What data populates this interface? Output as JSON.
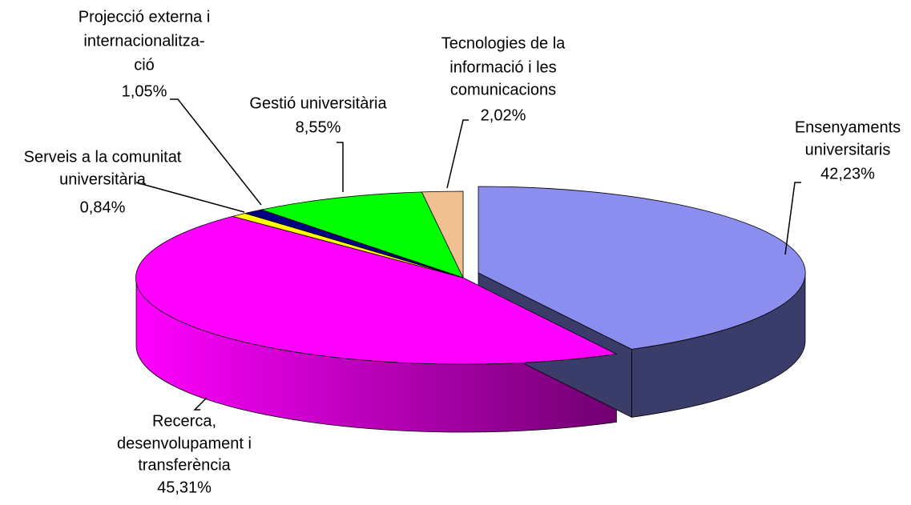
{
  "chart_data": {
    "type": "pie",
    "three_d": true,
    "categories": [
      [
        "Ensenyaments",
        "universitaris"
      ],
      [
        "Recerca,",
        "desenvolupament i",
        "transferència"
      ],
      [
        "Serveis a la comunitat",
        "universitària"
      ],
      [
        "Projecció externa i",
        "internacionalitza-",
        "ció"
      ],
      [
        "Gestió universitària"
      ],
      [
        "Tecnologies de la",
        "informació i les",
        "comunicacions"
      ]
    ],
    "values": [
      42.23,
      45.31,
      0.84,
      1.05,
      8.55,
      2.02
    ],
    "value_labels": [
      "42,23%",
      "45,31%",
      "0,84%",
      "1,05%",
      "8,55%",
      "2,02%"
    ],
    "colors": [
      "#8b8eef",
      "#ff00ff",
      "#ffff00",
      "#000080",
      "#00ff00",
      "#f0c090"
    ],
    "side_colors": [
      "#3a3c6a",
      "#a000a0",
      "#808000",
      "#000040",
      "#008000",
      "#a08060"
    ]
  }
}
